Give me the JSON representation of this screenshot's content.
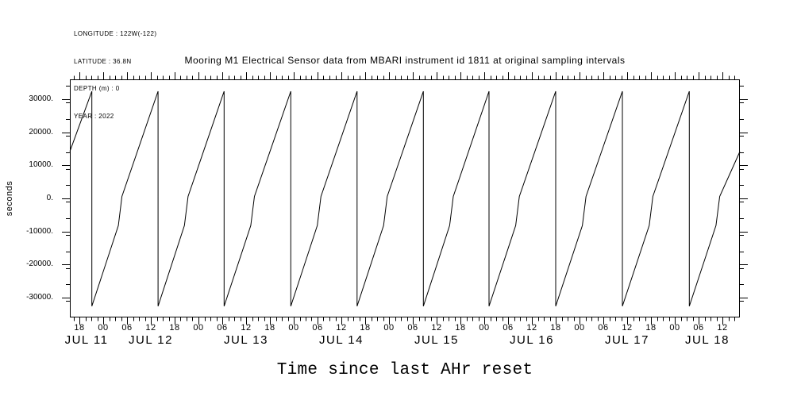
{
  "figure": {
    "background_color": "#ffffff",
    "line_color": "#000000"
  },
  "meta": {
    "longitude": "LONGITUDE : 122W(-122)",
    "latitude": "LATITUDE : 36.8N",
    "depth": "DEPTH (m) : 0",
    "year": "YEAR : 2022"
  },
  "title": "Mooring M1 Electrical Sensor data from MBARI instrument id 1811 at original sampling intervals",
  "axes": {
    "y_label": "seconds",
    "x_label": "Time since last AHr reset",
    "y_ticks": [
      {
        "label": "30000.",
        "value": 30000
      },
      {
        "label": "20000.",
        "value": 20000
      },
      {
        "label": "10000.",
        "value": 10000
      },
      {
        "label": "0.",
        "value": 0
      },
      {
        "label": "-10000.",
        "value": -10000
      },
      {
        "label": "-20000.",
        "value": -20000
      },
      {
        "label": "-30000.",
        "value": -30000
      }
    ],
    "y_minor_step": 5000,
    "x_hour_ticks": [
      {
        "label": "18",
        "hour": 18
      },
      {
        "label": "00",
        "hour": 24
      },
      {
        "label": "06",
        "hour": 30
      },
      {
        "label": "12",
        "hour": 36
      },
      {
        "label": "18",
        "hour": 42
      },
      {
        "label": "00",
        "hour": 48
      },
      {
        "label": "06",
        "hour": 54
      },
      {
        "label": "12",
        "hour": 60
      },
      {
        "label": "18",
        "hour": 66
      },
      {
        "label": "00",
        "hour": 72
      },
      {
        "label": "06",
        "hour": 78
      },
      {
        "label": "12",
        "hour": 84
      },
      {
        "label": "18",
        "hour": 90
      },
      {
        "label": "00",
        "hour": 96
      },
      {
        "label": "06",
        "hour": 102
      },
      {
        "label": "12",
        "hour": 108
      },
      {
        "label": "18",
        "hour": 114
      },
      {
        "label": "00",
        "hour": 120
      },
      {
        "label": "06",
        "hour": 126
      },
      {
        "label": "12",
        "hour": 132
      },
      {
        "label": "18",
        "hour": 138
      },
      {
        "label": "00",
        "hour": 144
      },
      {
        "label": "06",
        "hour": 150
      },
      {
        "label": "12",
        "hour": 156
      },
      {
        "label": "18",
        "hour": 162
      },
      {
        "label": "00",
        "hour": 168
      },
      {
        "label": "06",
        "hour": 174
      },
      {
        "label": "12",
        "hour": 180
      }
    ],
    "x_minor_step_hours": 1.5,
    "x_day_labels": [
      {
        "label": "JUL 11",
        "hour": 19.8
      },
      {
        "label": "JUL 12",
        "hour": 36
      },
      {
        "label": "JUL 13",
        "hour": 60
      },
      {
        "label": "JUL 14",
        "hour": 84
      },
      {
        "label": "JUL 15",
        "hour": 108
      },
      {
        "label": "JUL 16",
        "hour": 132
      },
      {
        "label": "JUL 17",
        "hour": 156
      },
      {
        "label": "JUL 18",
        "hour": 176.2
      }
    ]
  },
  "chart_data": {
    "type": "line",
    "waveform": "sawtooth",
    "title": "Mooring M1 Electrical Sensor data from MBARI instrument id 1811 at original sampling intervals",
    "xlabel": "Time since last AHr reset",
    "ylabel": "seconds",
    "year": 2022,
    "x_unit": "hours since Jul 11 00:00",
    "x_axis_hours": [
      15.6,
      184.4
    ],
    "ylim": [
      -36000,
      36000
    ],
    "wrap_range": [
      -32768,
      32767
    ],
    "reset_interval_seconds_approx": 60100,
    "reset_hours": [
      21.14,
      37.81,
      54.47,
      71.27,
      87.95,
      104.67,
      121.2,
      138.0,
      154.8,
      171.67
    ],
    "reset_times_approx": [
      "Jul 11 21:08",
      "Jul 12 13:49",
      "Jul 13 06:28",
      "Jul 13 23:16",
      "Jul 14 15:57",
      "Jul 15 08:40",
      "Jul 16 01:12",
      "Jul 16 18:00",
      "Jul 17 10:48",
      "Jul 18 03:40"
    ],
    "points": [
      [
        15.6,
        14200
      ],
      [
        21.14,
        32400
      ],
      [
        21.14,
        -32600
      ],
      [
        27.81,
        -8200
      ],
      [
        28.72,
        600
      ],
      [
        37.81,
        32400
      ],
      [
        37.81,
        -32600
      ],
      [
        44.47,
        -8200
      ],
      [
        45.39,
        600
      ],
      [
        54.47,
        32400
      ],
      [
        54.47,
        -32600
      ],
      [
        61.19,
        -8200
      ],
      [
        62.11,
        600
      ],
      [
        71.27,
        32400
      ],
      [
        71.27,
        -32600
      ],
      [
        77.94,
        -8200
      ],
      [
        78.86,
        600
      ],
      [
        87.95,
        32400
      ],
      [
        87.95,
        -32600
      ],
      [
        94.64,
        -8200
      ],
      [
        95.56,
        600
      ],
      [
        104.67,
        32400
      ],
      [
        104.67,
        -32600
      ],
      [
        111.28,
        -8200
      ],
      [
        112.19,
        600
      ],
      [
        121.2,
        32400
      ],
      [
        121.2,
        -32600
      ],
      [
        127.92,
        -8200
      ],
      [
        128.84,
        600
      ],
      [
        138.0,
        32400
      ],
      [
        138.0,
        -32600
      ],
      [
        144.72,
        -8200
      ],
      [
        145.64,
        600
      ],
      [
        154.8,
        32400
      ],
      [
        154.8,
        -32600
      ],
      [
        161.55,
        -8200
      ],
      [
        162.48,
        600
      ],
      [
        171.67,
        32400
      ],
      [
        171.67,
        -32600
      ],
      [
        178.39,
        -8200
      ],
      [
        179.31,
        600
      ],
      [
        184.4,
        14160
      ]
    ]
  }
}
